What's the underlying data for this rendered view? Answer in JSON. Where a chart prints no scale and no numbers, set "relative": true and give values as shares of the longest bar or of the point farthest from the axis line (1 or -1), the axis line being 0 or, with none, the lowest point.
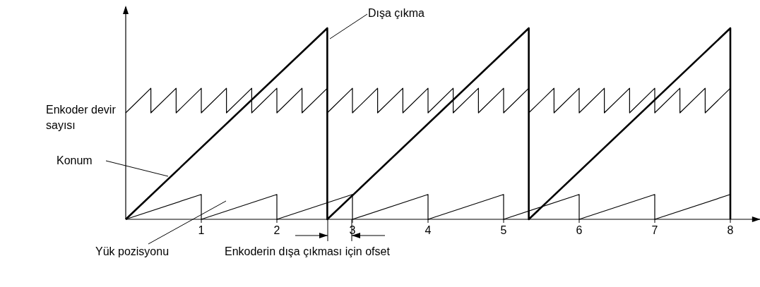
{
  "chart_data": {
    "type": "line",
    "relative": true,
    "xlim": [
      0,
      8.4
    ],
    "xticks": [
      1,
      2,
      3,
      4,
      5,
      6,
      7,
      8
    ],
    "grid": false,
    "legend": false,
    "marker": "none",
    "line_style": "solid",
    "annotations": [
      "Dışa çıkma",
      "Enkoderin dışa çıkması için ofset"
    ],
    "series": [
      {
        "name": "Konum",
        "color": "#000000",
        "x": [
          0,
          2.667,
          2.667,
          5.333,
          5.333,
          8,
          8
        ],
        "values": [
          0,
          1,
          0,
          1,
          0,
          1,
          0
        ]
      },
      {
        "name": "Enkoder devir sayısı",
        "color": "#000000",
        "x": [
          0,
          0.333,
          0.333,
          0.667,
          0.667,
          1,
          1,
          1.333,
          1.333,
          1.667,
          1.667,
          2,
          2,
          2.333,
          2.333,
          2.667,
          2.667,
          3,
          3,
          3.333,
          3.333,
          3.667,
          3.667,
          4,
          4,
          4.333,
          4.333,
          4.667,
          4.667,
          5,
          5,
          5.333,
          5.333,
          5.667,
          5.667,
          6,
          6,
          6.333,
          6.333,
          6.667,
          6.667,
          7,
          7,
          7.333,
          7.333,
          7.667,
          7.667,
          8
        ],
        "values": [
          0.557,
          0.686,
          0.557,
          0.686,
          0.557,
          0.686,
          0.557,
          0.686,
          0.557,
          0.686,
          0.557,
          0.686,
          0.557,
          0.686,
          0.557,
          0.686,
          0.557,
          0.686,
          0.557,
          0.686,
          0.557,
          0.686,
          0.557,
          0.686,
          0.557,
          0.686,
          0.557,
          0.686,
          0.557,
          0.686,
          0.557,
          0.686,
          0.557,
          0.686,
          0.557,
          0.686,
          0.557,
          0.686,
          0.557,
          0.686,
          0.557,
          0.686,
          0.557,
          0.686,
          0.557,
          0.686,
          0.557,
          0.686
        ]
      },
      {
        "name": "Yük pozisyonu",
        "color": "#000000",
        "x": [
          0,
          1,
          1,
          2,
          2,
          3,
          3,
          4,
          4,
          5,
          5,
          6,
          6,
          7,
          7,
          8
        ],
        "values": [
          0,
          0.13,
          0,
          0.13,
          0,
          0.13,
          0,
          0.13,
          0,
          0.13,
          0,
          0.13,
          0,
          0.13,
          0,
          0.13
        ]
      }
    ]
  }
}
